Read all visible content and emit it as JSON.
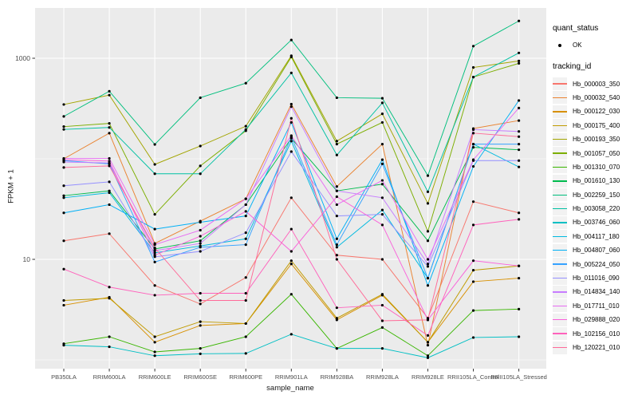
{
  "legend": {
    "quant_status_title": "quant_status",
    "ok_label": "OK",
    "tracking_id_title": "tracking_id"
  },
  "chart_data": {
    "type": "line",
    "title": "",
    "xlabel": "sample_name",
    "ylabel": "FPKM + 1",
    "y_scale": "log10",
    "ylim": [
      0.82,
      3300
    ],
    "grid": true,
    "panel_bg": "#EBEBEB",
    "grid_color": "#FFFFFF",
    "point_color": "#000000",
    "y_tick_labels": [
      "1000",
      "10"
    ],
    "y_tick_values": [
      1000,
      10
    ],
    "y_minor_values": [
      100,
      1
    ],
    "legend_position": "right",
    "categories": [
      "PB350LA",
      "RRIM600LA",
      "RRIM600LE",
      "RRIM600SE",
      "RRIM600PE",
      "RRIM901LA",
      "RRIM928BA",
      "RRIM928LA",
      "RRIM928LE",
      "RRII105LA_Control",
      "RRII105LA_Stressed"
    ],
    "series": [
      {
        "name": "Hb_000003_350",
        "color": "#F8766D",
        "values": [
          15.3,
          18,
          5.5,
          3.6,
          6.6,
          41,
          11,
          10,
          2.6,
          37.5,
          29
        ]
      },
      {
        "name": "Hb_000032_540",
        "color": "#EA8331",
        "values": [
          100,
          180,
          14.4,
          24,
          40,
          350,
          53,
          140,
          1.4,
          200,
          240
        ]
      },
      {
        "name": "Hb_000122_030",
        "color": "#D89000",
        "values": [
          3.5,
          4.2,
          1.5,
          2.2,
          2.3,
          9,
          2.5,
          4.4,
          1.5,
          6,
          6.5
        ]
      },
      {
        "name": "Hb_000175_400",
        "color": "#C09B00",
        "values": [
          3.9,
          4.1,
          1.7,
          2.4,
          2.3,
          9.7,
          2.6,
          4.5,
          1.5,
          7.8,
          8.6
        ]
      },
      {
        "name": "Hb_000193_350",
        "color": "#A3A500",
        "values": [
          347,
          430,
          88,
          134,
          211,
          1060,
          150,
          280,
          36,
          810,
          940
        ]
      },
      {
        "name": "Hb_001057_050",
        "color": "#7CAE00",
        "values": [
          209,
          225,
          28,
          85,
          190,
          1030,
          140,
          230,
          19,
          650,
          890
        ]
      },
      {
        "name": "Hb_001310_070",
        "color": "#39B600",
        "values": [
          1.45,
          1.7,
          1.2,
          1.3,
          1.7,
          4.5,
          1.3,
          2.1,
          1.1,
          3.1,
          3.2
        ]
      },
      {
        "name": "Hb_001610_130",
        "color": "#00BB4E",
        "values": [
          43,
          48,
          12.7,
          15.3,
          35,
          160,
          48,
          56,
          15.3,
          130,
          123
        ]
      },
      {
        "name": "Hb_002259_150",
        "color": "#00BF7D",
        "values": [
          264,
          470,
          139,
          405,
          565,
          1520,
          405,
          400,
          68,
          1320,
          2350
        ]
      },
      {
        "name": "Hb_003058_220",
        "color": "#00C1A3",
        "values": [
          196,
          205,
          71,
          71,
          196,
          715,
          109,
          360,
          47,
          650,
          1130
        ]
      },
      {
        "name": "Hb_003746_060",
        "color": "#00BFC4",
        "values": [
          1.4,
          1.35,
          1.1,
          1.15,
          1.16,
          1.8,
          1.3,
          1.3,
          1.05,
          1.67,
          1.7
        ]
      },
      {
        "name": "Hb_004117_180",
        "color": "#00BAE0",
        "values": [
          41,
          46,
          11.6,
          13.6,
          16,
          150,
          13.2,
          31,
          6.5,
          140,
          83
        ]
      },
      {
        "name": "Hb_004807_060",
        "color": "#00B0F6",
        "values": [
          29,
          35,
          20,
          23.4,
          27,
          230,
          16,
          98,
          5.5,
          84,
          380
        ]
      },
      {
        "name": "Hb_005224_050",
        "color": "#35A2FF",
        "values": [
          96,
          89,
          9.4,
          13.2,
          14,
          165,
          14,
          89,
          6.5,
          140,
          140
        ]
      },
      {
        "name": "Hb_011016_090",
        "color": "#9590FF",
        "values": [
          54,
          59,
          10.6,
          12,
          18.4,
          118,
          27,
          28,
          8.5,
          96,
          96
        ]
      },
      {
        "name": "Hb_014834_140",
        "color": "#C77CFF",
        "values": [
          93,
          91,
          12.2,
          14.4,
          35,
          330,
          48,
          41,
          9,
          195,
          187
        ]
      },
      {
        "name": "Hb_017711_010",
        "color": "#E76BF3",
        "values": [
          101,
          101,
          14,
          19.5,
          40,
          170,
          35,
          61,
          10,
          98,
          320
        ]
      },
      {
        "name": "Hb_029888_020",
        "color": "#FA62DB",
        "values": [
          98,
          95,
          11,
          17,
          30,
          12,
          42,
          22,
          2.5,
          9.7,
          8.6
        ]
      },
      {
        "name": "Hb_102156_010",
        "color": "#FF62BC",
        "values": [
          8,
          5.3,
          4.4,
          4.6,
          4.6,
          20,
          3.3,
          3.5,
          1.75,
          22,
          25
        ]
      },
      {
        "name": "Hb_120221_010",
        "color": "#FF6A98",
        "values": [
          82,
          85,
          13,
          3.9,
          3.9,
          253,
          10,
          2.45,
          2.5,
          180,
          166
        ]
      }
    ]
  }
}
